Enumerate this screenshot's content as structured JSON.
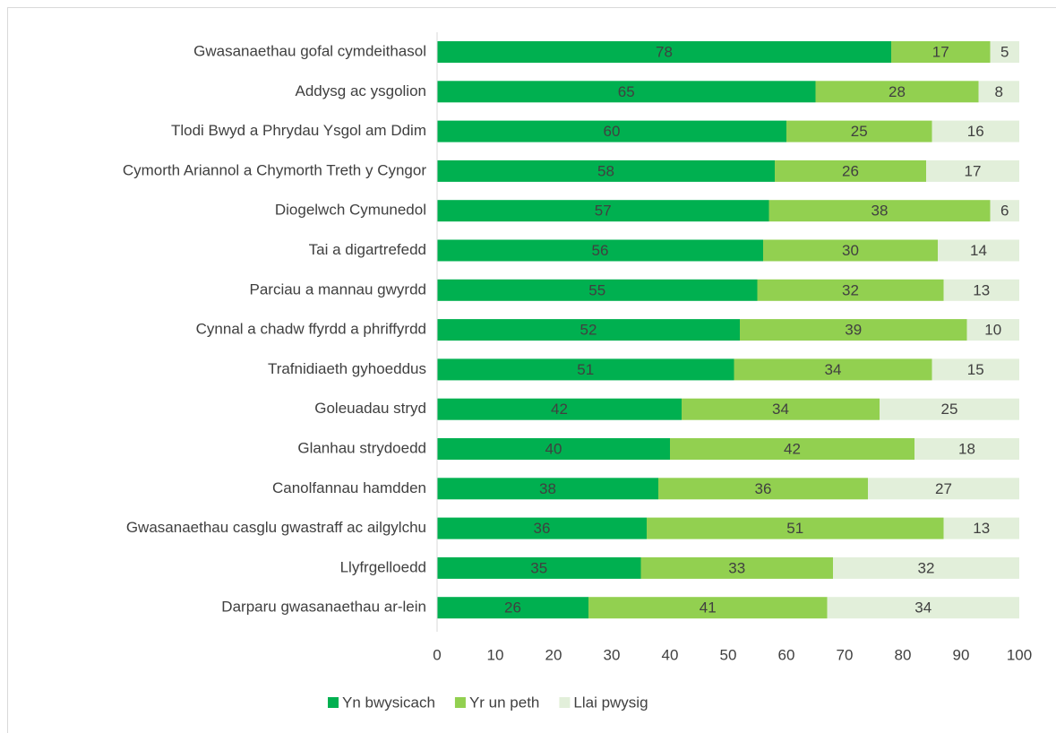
{
  "chart_data": {
    "type": "stacked_barh",
    "categories": [
      "Gwasanaethau gofal cymdeithasol",
      "Addysg ac ysgolion",
      "Tlodi Bwyd a Phrydau Ysgol am Ddim",
      "Cymorth Ariannol a Chymorth Treth y Cyngor",
      "Diogelwch Cymunedol",
      "Tai a digartrefedd",
      "Parciau a mannau gwyrdd",
      "Cynnal a chadw ffyrdd a phriffyrdd",
      "Trafnidiaeth gyhoeddus",
      "Goleuadau stryd",
      "Glanhau strydoedd",
      "Canolfannau hamdden",
      "Gwasanaethau casglu gwastraff ac ailgylchu",
      "Llyfrgelloedd",
      "Darparu gwasanaethau ar-lein"
    ],
    "series": [
      {
        "name": "Yn bwysicach",
        "color": "#00b050",
        "values": [
          78,
          65,
          60,
          58,
          57,
          56,
          55,
          52,
          51,
          42,
          40,
          38,
          36,
          35,
          26
        ]
      },
      {
        "name": "Yr un peth",
        "color": "#92d050",
        "values": [
          17,
          28,
          25,
          26,
          38,
          30,
          32,
          39,
          34,
          34,
          42,
          36,
          51,
          33,
          41
        ]
      },
      {
        "name": "Llai pwysig",
        "color": "#e2efda",
        "values": [
          5,
          8,
          16,
          17,
          6,
          14,
          13,
          10,
          15,
          25,
          18,
          27,
          13,
          32,
          34
        ]
      }
    ],
    "xlim": [
      0,
      100
    ],
    "xticks": [
      0,
      10,
      20,
      30,
      40,
      50,
      60,
      70,
      80,
      90,
      100
    ],
    "legend": "bottom"
  }
}
